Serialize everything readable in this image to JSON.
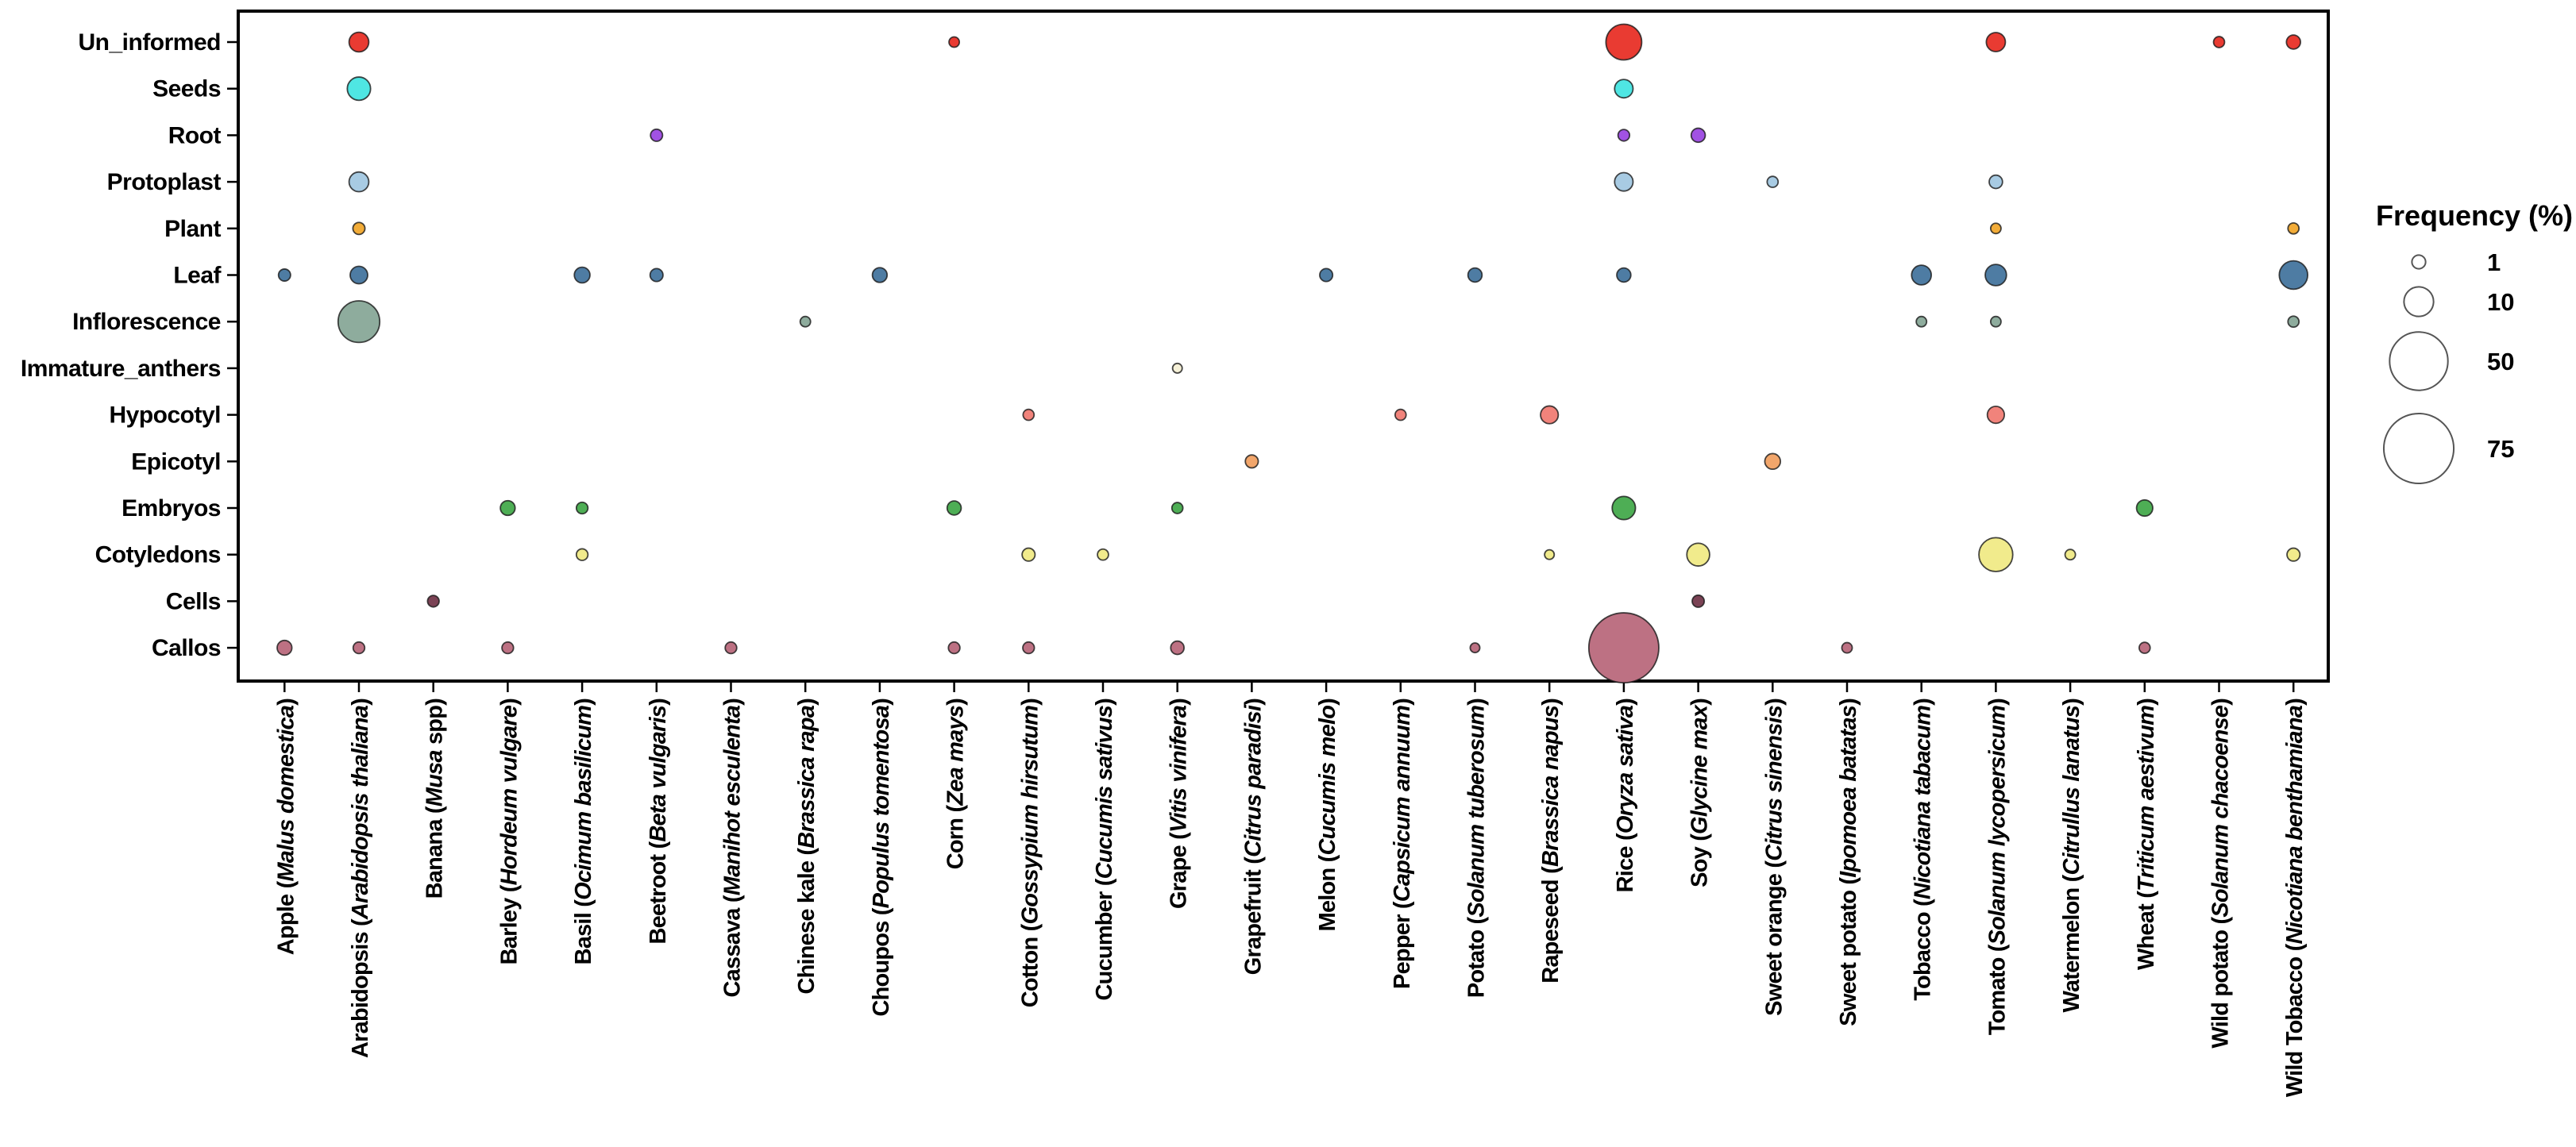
{
  "legend": {
    "title": "Frequency (%)",
    "sizes": [
      1,
      10,
      50,
      75
    ]
  },
  "axes": {
    "y_labels": [
      "Un_informed",
      "Seeds",
      "Root",
      "Protoplast",
      "Plant",
      "Leaf",
      "Inflorescence",
      "Immature_anthers",
      "Hypocotyl",
      "Epicotyl",
      "Embryos",
      "Cotyledons",
      "Cells",
      "Callos"
    ],
    "x_labels": [
      {
        "name": "Apple",
        "sci": "Malus domestica",
        "suffix": ""
      },
      {
        "name": "Arabidopsis",
        "sci": "Arabidopsis thaliana",
        "suffix": ""
      },
      {
        "name": "Banana",
        "sci": "Musa",
        "suffix": " spp"
      },
      {
        "name": "Barley",
        "sci": "Hordeum vulgare",
        "suffix": ""
      },
      {
        "name": "Basil",
        "sci": "Ocimum basilicum",
        "suffix": ""
      },
      {
        "name": "Beetroot",
        "sci": "Beta vulgaris",
        "suffix": ""
      },
      {
        "name": "Cassava",
        "sci": "Manihot esculenta",
        "suffix": ""
      },
      {
        "name": "Chinese kale",
        "sci": "Brassica rapa",
        "suffix": ""
      },
      {
        "name": "Choupos",
        "sci": "Populus tomentosa",
        "suffix": ""
      },
      {
        "name": "Corn",
        "sci": "Zea mays",
        "suffix": ""
      },
      {
        "name": "Cotton",
        "sci": "Gossypium hirsutum",
        "suffix": ""
      },
      {
        "name": "Cucumber",
        "sci": "Cucumis sativus",
        "suffix": ""
      },
      {
        "name": "Grape",
        "sci": "Vitis vinifera",
        "suffix": ""
      },
      {
        "name": "Grapefruit",
        "sci": "Citrus paradisi",
        "suffix": ""
      },
      {
        "name": "Melon",
        "sci": "Cucumis melo",
        "suffix": ""
      },
      {
        "name": "Pepper",
        "sci": "Capsicum annuum",
        "suffix": ""
      },
      {
        "name": "Potato",
        "sci": "Solanum tuberosum",
        "suffix": ""
      },
      {
        "name": "Rapeseed",
        "sci": "Brassica napus",
        "suffix": ""
      },
      {
        "name": "Rice",
        "sci": "Oryza sativa",
        "suffix": ""
      },
      {
        "name": "Soy",
        "sci": "Glycine max",
        "suffix": ""
      },
      {
        "name": "Sweet orange",
        "sci": "Citrus sinensis",
        "suffix": ""
      },
      {
        "name": "Sweet potato",
        "sci": "Ipomoea batatas",
        "suffix": ""
      },
      {
        "name": "Tobacco",
        "sci": "Nicotiana tabacum",
        "suffix": ""
      },
      {
        "name": "Tomato",
        "sci": "Solanum lycopersicum",
        "suffix": ""
      },
      {
        "name": "Watermelon",
        "sci": "Citrullus lanatus",
        "suffix": ""
      },
      {
        "name": "Wheat",
        "sci": "Triticum aestivum",
        "suffix": ""
      },
      {
        "name": "Wild potato",
        "sci": "Solanum chacoense",
        "suffix": ""
      },
      {
        "name": "Wild Tobacco",
        "sci": "Nicotiana benthamiana",
        "suffix": ""
      }
    ]
  },
  "chart_data": {
    "type": "scatter",
    "subtype": "bubble",
    "title": "",
    "xlabel": "",
    "ylabel": "",
    "grid": false,
    "legend_position": "right",
    "size_legend_title": "Frequency (%)",
    "size_legend_values": [
      1,
      10,
      50,
      75
    ],
    "x_categories": [
      "Apple",
      "Arabidopsis",
      "Banana",
      "Barley",
      "Basil",
      "Beetroot",
      "Cassava",
      "Chinese kale",
      "Choupos",
      "Corn",
      "Cotton",
      "Cucumber",
      "Grape",
      "Grapefruit",
      "Melon",
      "Pepper",
      "Potato",
      "Rapeseed",
      "Rice",
      "Soy",
      "Sweet orange",
      "Sweet potato",
      "Tobacco",
      "Tomato",
      "Watermelon",
      "Wheat",
      "Wild potato",
      "Wild Tobacco"
    ],
    "y_categories": [
      "Un_informed",
      "Seeds",
      "Root",
      "Protoplast",
      "Plant",
      "Leaf",
      "Inflorescence",
      "Immature_anthers",
      "Hypocotyl",
      "Epicotyl",
      "Embryos",
      "Cotyledons",
      "Cells",
      "Callos"
    ],
    "row_colors": {
      "Un_informed": "#E93B32",
      "Seeds": "#4FE6E3",
      "Root": "#A152E3",
      "Protoplast": "#A8CBE3",
      "Plant": "#F2AC38",
      "Leaf": "#4E7CA3",
      "Inflorescence": "#8EAC9D",
      "Immature_anthers": "#F6F1D8",
      "Hypocotyl": "#F1837B",
      "Epicotyl": "#F2A66B",
      "Embryos": "#4EAE55",
      "Cotyledons": "#F1EB8C",
      "Cells": "#7B4355",
      "Callos": "#BD7183"
    },
    "points": [
      {
        "x": "Apple",
        "y": "Leaf",
        "value": 0.6
      },
      {
        "x": "Apple",
        "y": "Callos",
        "value": 1.3
      },
      {
        "x": "Arabidopsis",
        "y": "Un_informed",
        "value": 3.3
      },
      {
        "x": "Arabidopsis",
        "y": "Seeds",
        "value": 5.3
      },
      {
        "x": "Arabidopsis",
        "y": "Protoplast",
        "value": 3.3
      },
      {
        "x": "Arabidopsis",
        "y": "Plant",
        "value": 0.6
      },
      {
        "x": "Arabidopsis",
        "y": "Leaf",
        "value": 2.3
      },
      {
        "x": "Arabidopsis",
        "y": "Inflorescence",
        "value": 23
      },
      {
        "x": "Arabidopsis",
        "y": "Callos",
        "value": 0.5
      },
      {
        "x": "Banana",
        "y": "Cells",
        "value": 0.5
      },
      {
        "x": "Barley",
        "y": "Embryos",
        "value": 1.3
      },
      {
        "x": "Barley",
        "y": "Callos",
        "value": 0.5
      },
      {
        "x": "Basil",
        "y": "Leaf",
        "value": 1.6
      },
      {
        "x": "Basil",
        "y": "Embryos",
        "value": 0.5
      },
      {
        "x": "Basil",
        "y": "Cotyledons",
        "value": 0.5
      },
      {
        "x": "Beetroot",
        "y": "Root",
        "value": 0.6
      },
      {
        "x": "Beetroot",
        "y": "Leaf",
        "value": 0.8
      },
      {
        "x": "Cassava",
        "y": "Callos",
        "value": 0.5
      },
      {
        "x": "Chinese kale",
        "y": "Inflorescence",
        "value": 0.3
      },
      {
        "x": "Choupos",
        "y": "Leaf",
        "value": 1.3
      },
      {
        "x": "Corn",
        "y": "Un_informed",
        "value": 0.3
      },
      {
        "x": "Corn",
        "y": "Embryos",
        "value": 1.1
      },
      {
        "x": "Corn",
        "y": "Callos",
        "value": 0.5
      },
      {
        "x": "Cotton",
        "y": "Hypocotyl",
        "value": 0.4
      },
      {
        "x": "Cotton",
        "y": "Cotyledons",
        "value": 0.8
      },
      {
        "x": "Cotton",
        "y": "Callos",
        "value": 0.5
      },
      {
        "x": "Cucumber",
        "y": "Cotyledons",
        "value": 0.4
      },
      {
        "x": "Grape",
        "y": "Immature_anthers",
        "value": 0.2
      },
      {
        "x": "Grape",
        "y": "Embryos",
        "value": 0.4
      },
      {
        "x": "Grape",
        "y": "Callos",
        "value": 0.9
      },
      {
        "x": "Grapefruit",
        "y": "Epicotyl",
        "value": 0.8
      },
      {
        "x": "Melon",
        "y": "Leaf",
        "value": 0.8
      },
      {
        "x": "Pepper",
        "y": "Hypocotyl",
        "value": 0.4
      },
      {
        "x": "Potato",
        "y": "Leaf",
        "value": 1.1
      },
      {
        "x": "Potato",
        "y": "Callos",
        "value": 0.2
      },
      {
        "x": "Rapeseed",
        "y": "Hypocotyl",
        "value": 2.4
      },
      {
        "x": "Rapeseed",
        "y": "Cotyledons",
        "value": 0.2
      },
      {
        "x": "Rice",
        "y": "Un_informed",
        "value": 16
      },
      {
        "x": "Rice",
        "y": "Seeds",
        "value": 2.7
      },
      {
        "x": "Rice",
        "y": "Root",
        "value": 0.5
      },
      {
        "x": "Rice",
        "y": "Protoplast",
        "value": 2.7
      },
      {
        "x": "Rice",
        "y": "Leaf",
        "value": 1.1
      },
      {
        "x": "Rice",
        "y": "Embryos",
        "value": 5.3
      },
      {
        "x": "Rice",
        "y": "Callos",
        "value": 75
      },
      {
        "x": "Soy",
        "y": "Root",
        "value": 1.1
      },
      {
        "x": "Soy",
        "y": "Cotyledons",
        "value": 5
      },
      {
        "x": "Soy",
        "y": "Cells",
        "value": 0.6
      },
      {
        "x": "Sweet orange",
        "y": "Protoplast",
        "value": 0.4
      },
      {
        "x": "Sweet orange",
        "y": "Epicotyl",
        "value": 1.6
      },
      {
        "x": "Sweet potato",
        "y": "Callos",
        "value": 0.3
      },
      {
        "x": "Tobacco",
        "y": "Leaf",
        "value": 3.3
      },
      {
        "x": "Tobacco",
        "y": "Inflorescence",
        "value": 0.3
      },
      {
        "x": "Tomato",
        "y": "Un_informed",
        "value": 3
      },
      {
        "x": "Tomato",
        "y": "Protoplast",
        "value": 0.9
      },
      {
        "x": "Tomato",
        "y": "Plant",
        "value": 0.3
      },
      {
        "x": "Tomato",
        "y": "Leaf",
        "value": 4.1
      },
      {
        "x": "Tomato",
        "y": "Inflorescence",
        "value": 0.3
      },
      {
        "x": "Tomato",
        "y": "Hypocotyl",
        "value": 2.1
      },
      {
        "x": "Tomato",
        "y": "Cotyledons",
        "value": 14
      },
      {
        "x": "Watermelon",
        "y": "Cotyledons",
        "value": 0.3
      },
      {
        "x": "Wheat",
        "y": "Embryos",
        "value": 1.8
      },
      {
        "x": "Wheat",
        "y": "Callos",
        "value": 0.4
      },
      {
        "x": "Wild potato",
        "y": "Un_informed",
        "value": 0.4
      },
      {
        "x": "Wild Tobacco",
        "y": "Un_informed",
        "value": 1.1
      },
      {
        "x": "Wild Tobacco",
        "y": "Plant",
        "value": 0.4
      },
      {
        "x": "Wild Tobacco",
        "y": "Leaf",
        "value": 9
      },
      {
        "x": "Wild Tobacco",
        "y": "Inflorescence",
        "value": 0.4
      },
      {
        "x": "Wild Tobacco",
        "y": "Cotyledons",
        "value": 0.8
      }
    ]
  }
}
